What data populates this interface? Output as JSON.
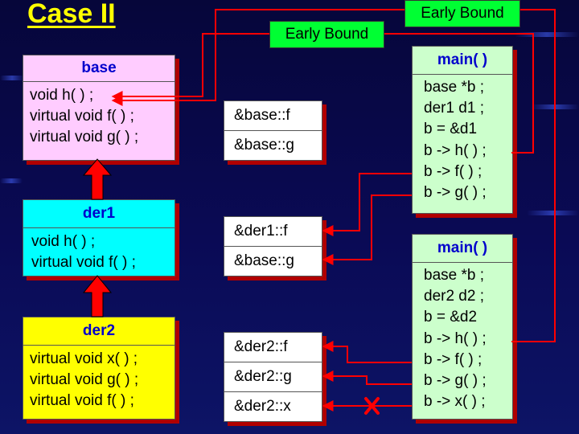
{
  "title": "Case II",
  "labels": {
    "early_bound_1": "Early Bound",
    "early_bound_2": "Early Bound"
  },
  "classes": [
    {
      "name": "base",
      "members": [
        "void h( ) ;",
        "virtual void f( ) ;",
        "virtual void g( ) ;"
      ],
      "color": "#ffccff"
    },
    {
      "name": "der1",
      "members": [
        "void h( ) ;",
        "virtual void f( ) ;"
      ],
      "color": "#00ffff"
    },
    {
      "name": "der2",
      "members": [
        "virtual void x( ) ;",
        "virtual void g( ) ;",
        "virtual void f( ) ;"
      ],
      "color": "#ffff00"
    }
  ],
  "vtables": [
    [
      "&base::f",
      "&base::g"
    ],
    [
      "&der1::f",
      "&base::g"
    ],
    [
      "&der2::f",
      "&der2::g",
      "&der2::x"
    ]
  ],
  "mains": [
    {
      "header": "main( )",
      "lines": [
        "base  *b ;",
        "der1  d1 ;",
        "b = &d1",
        "b -> h( ) ;",
        "b -> f( ) ;",
        "b -> g( ) ;"
      ]
    },
    {
      "header": "main( )",
      "lines": [
        "base  *b ;",
        "der2  d2 ;",
        "b = &d2",
        "b -> h( ) ;",
        "b -> f( ) ;",
        "b -> g( ) ;",
        "b -> x( ) ;"
      ]
    }
  ],
  "colors": {
    "arrow": "#ff0000",
    "main_bg": "#ccffcc",
    "early_bound_bg": "#00ff33",
    "title": "#ffff00",
    "header_text": "#0000cc"
  }
}
